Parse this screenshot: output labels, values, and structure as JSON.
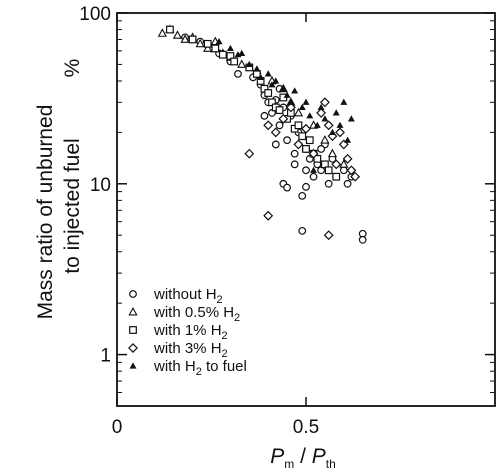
{
  "chart_data": {
    "type": "scatter",
    "xlabel": {
      "main": "P",
      "sub": "m",
      "sep": " / ",
      "main2": "P",
      "sub2": "th"
    },
    "ylabel_lines": [
      "Mass ratio of unburned",
      "to injected fuel"
    ],
    "yunit": "%",
    "xlim": [
      0,
      1.0
    ],
    "ylim": [
      0.5,
      100
    ],
    "yscale": "log",
    "x_ticks": [
      {
        "value": 0,
        "label": "0"
      },
      {
        "value": 0.5,
        "label": "0.5"
      }
    ],
    "y_ticks": [
      {
        "value": 1,
        "label": "1"
      },
      {
        "value": 10,
        "label": "10"
      },
      {
        "value": 100,
        "label": "100"
      }
    ],
    "legend_position": "bottom-left",
    "series": [
      {
        "label_main": "without H",
        "label_sub": "2",
        "label_tail": "",
        "marker": "circle",
        "points": [
          [
            0.18,
            72
          ],
          [
            0.22,
            68
          ],
          [
            0.25,
            62
          ],
          [
            0.27,
            58
          ],
          [
            0.3,
            52
          ],
          [
            0.32,
            44
          ],
          [
            0.36,
            42
          ],
          [
            0.38,
            38
          ],
          [
            0.39,
            33
          ],
          [
            0.4,
            30
          ],
          [
            0.41,
            26
          ],
          [
            0.42,
            31
          ],
          [
            0.43,
            22
          ],
          [
            0.44,
            28
          ],
          [
            0.45,
            18
          ],
          [
            0.46,
            25
          ],
          [
            0.47,
            15
          ],
          [
            0.48,
            20
          ],
          [
            0.5,
            16
          ],
          [
            0.5,
            12
          ],
          [
            0.51,
            14
          ],
          [
            0.52,
            11
          ],
          [
            0.53,
            13
          ],
          [
            0.54,
            12
          ],
          [
            0.55,
            17
          ],
          [
            0.56,
            10
          ],
          [
            0.57,
            14
          ],
          [
            0.58,
            11
          ],
          [
            0.6,
            12
          ],
          [
            0.61,
            10
          ],
          [
            0.62,
            11
          ],
          [
            0.44,
            10
          ],
          [
            0.45,
            9.5
          ],
          [
            0.49,
            8.5
          ],
          [
            0.5,
            9.6
          ],
          [
            0.42,
            17
          ],
          [
            0.47,
            13
          ],
          [
            0.54,
            16
          ],
          [
            0.39,
            25
          ],
          [
            0.43,
            36
          ],
          [
            0.49,
            5.3
          ],
          [
            0.65,
            5.1
          ],
          [
            0.65,
            4.7
          ]
        ]
      },
      {
        "label_main": "with 0.5% H",
        "label_sub": "2",
        "label_tail": "",
        "marker": "triangle",
        "points": [
          [
            0.12,
            76
          ],
          [
            0.14,
            80
          ],
          [
            0.16,
            74
          ],
          [
            0.18,
            70
          ],
          [
            0.2,
            72
          ],
          [
            0.22,
            66
          ],
          [
            0.24,
            62
          ],
          [
            0.26,
            68
          ],
          [
            0.28,
            58
          ],
          [
            0.3,
            55
          ],
          [
            0.33,
            50
          ],
          [
            0.37,
            46
          ],
          [
            0.41,
            40
          ],
          [
            0.44,
            36
          ],
          [
            0.46,
            30
          ],
          [
            0.48,
            26
          ],
          [
            0.52,
            22
          ],
          [
            0.55,
            18
          ],
          [
            0.57,
            15
          ],
          [
            0.6,
            13
          ]
        ]
      },
      {
        "label_main": "with 1% H",
        "label_sub": "2",
        "label_tail": "",
        "marker": "square",
        "points": [
          [
            0.14,
            80
          ],
          [
            0.2,
            70
          ],
          [
            0.24,
            66
          ],
          [
            0.26,
            62
          ],
          [
            0.28,
            57
          ],
          [
            0.3,
            56
          ],
          [
            0.31,
            52
          ],
          [
            0.35,
            48
          ],
          [
            0.37,
            44
          ],
          [
            0.38,
            40
          ],
          [
            0.39,
            36
          ],
          [
            0.4,
            34
          ],
          [
            0.41,
            30
          ],
          [
            0.42,
            28
          ],
          [
            0.43,
            27
          ],
          [
            0.44,
            32
          ],
          [
            0.45,
            24
          ],
          [
            0.46,
            26
          ],
          [
            0.47,
            21
          ],
          [
            0.48,
            22
          ],
          [
            0.49,
            19
          ],
          [
            0.5,
            16
          ],
          [
            0.51,
            18
          ],
          [
            0.52,
            15
          ],
          [
            0.53,
            14
          ],
          [
            0.55,
            13
          ],
          [
            0.56,
            12
          ],
          [
            0.58,
            11
          ]
        ]
      },
      {
        "label_main": "with 3% H",
        "label_sub": "2",
        "label_tail": "",
        "marker": "diamond",
        "points": [
          [
            0.35,
            15
          ],
          [
            0.4,
            6.5
          ],
          [
            0.4,
            22
          ],
          [
            0.42,
            20
          ],
          [
            0.44,
            24
          ],
          [
            0.46,
            28
          ],
          [
            0.48,
            17
          ],
          [
            0.5,
            21
          ],
          [
            0.52,
            15
          ],
          [
            0.54,
            26
          ],
          [
            0.55,
            30
          ],
          [
            0.56,
            22
          ],
          [
            0.57,
            19
          ],
          [
            0.58,
            13
          ],
          [
            0.59,
            20
          ],
          [
            0.6,
            17
          ],
          [
            0.61,
            14
          ],
          [
            0.62,
            12
          ],
          [
            0.63,
            11
          ],
          [
            0.56,
            5.0
          ]
        ]
      },
      {
        "label_main": "with H",
        "label_sub": "2",
        "label_tail": " to fuel",
        "marker": "filled-triangle",
        "points": [
          [
            0.27,
            68
          ],
          [
            0.3,
            62
          ],
          [
            0.33,
            58
          ],
          [
            0.35,
            50
          ],
          [
            0.37,
            47
          ],
          [
            0.38,
            42
          ],
          [
            0.4,
            44
          ],
          [
            0.41,
            38
          ],
          [
            0.42,
            40
          ],
          [
            0.44,
            36
          ],
          [
            0.45,
            33
          ],
          [
            0.46,
            30
          ],
          [
            0.47,
            35
          ],
          [
            0.49,
            28
          ],
          [
            0.5,
            30
          ],
          [
            0.51,
            25
          ],
          [
            0.53,
            22
          ],
          [
            0.54,
            28
          ],
          [
            0.55,
            24
          ],
          [
            0.57,
            20
          ],
          [
            0.58,
            26
          ],
          [
            0.59,
            22
          ],
          [
            0.6,
            30
          ],
          [
            0.61,
            18
          ],
          [
            0.62,
            24
          ],
          [
            0.52,
            12
          ],
          [
            0.32,
            57
          ]
        ]
      }
    ]
  }
}
